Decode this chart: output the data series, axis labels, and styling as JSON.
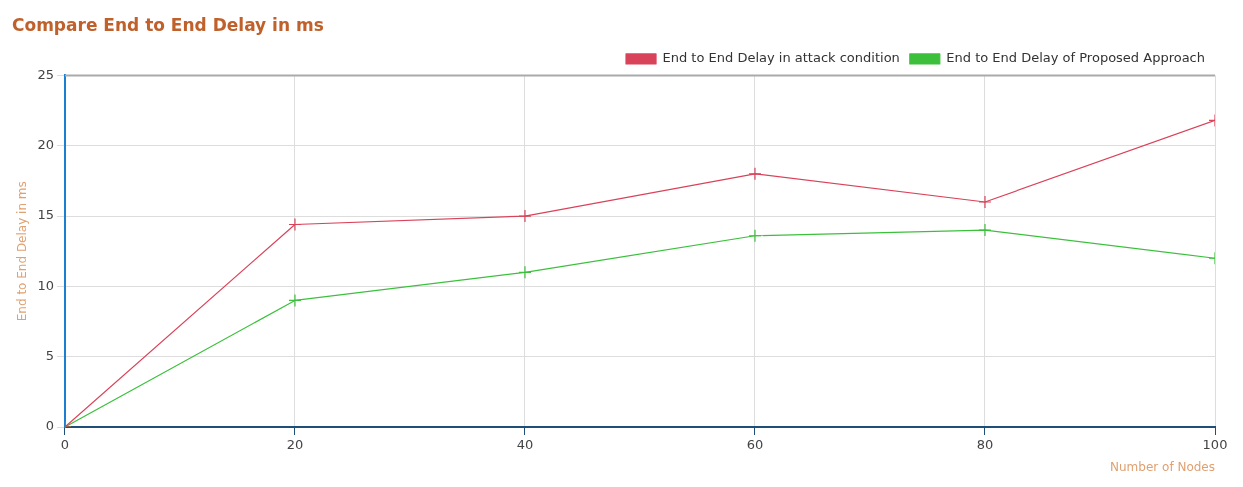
{
  "chart_data": {
    "type": "line",
    "title": "Compare End to End Delay in ms",
    "xlabel": "Number of Nodes",
    "ylabel": "End to End Delay in ms",
    "x": [
      0,
      20,
      40,
      60,
      80,
      100
    ],
    "series": [
      {
        "name": "End to End Delay in attack condition",
        "color": "#d9435a",
        "values": [
          0,
          14.4,
          15,
          18,
          16,
          21.8
        ]
      },
      {
        "name": "End to End Delay of Proposed Approach",
        "color": "#3cc03c",
        "values": [
          0,
          9,
          11,
          13.6,
          14,
          12
        ]
      }
    ],
    "xlim": [
      0,
      100
    ],
    "xticks": [
      0,
      20,
      40,
      60,
      80,
      100
    ],
    "ylim": [
      0,
      25
    ],
    "yticks": [
      0,
      5,
      10,
      15,
      20,
      25
    ],
    "grid": true,
    "legend": "top right",
    "marker": "cross",
    "line_style": "solid"
  }
}
